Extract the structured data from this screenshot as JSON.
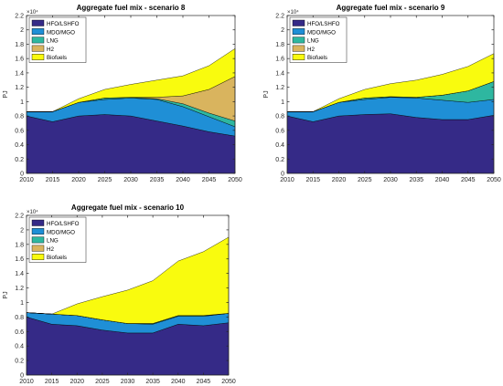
{
  "chart_data": [
    {
      "type": "area",
      "stacked": true,
      "title": "Aggregate fuel mix - scenario 8",
      "xlabel": "",
      "ylabel": "PJ",
      "y_multiplier": "10⁴",
      "xlim": [
        2010,
        2050
      ],
      "ylim": [
        0,
        2.2
      ],
      "x": [
        2010,
        2015,
        2020,
        2025,
        2030,
        2035,
        2040,
        2045,
        2050
      ],
      "x_ticks": [
        "2010",
        "2015",
        "2020",
        "2025",
        "2030",
        "2035",
        "2040",
        "2045",
        "2050"
      ],
      "y_ticks": [
        "0",
        "0.2",
        "0.4",
        "0.6",
        "0.8",
        "1",
        "1.2",
        "1.4",
        "1.6",
        "1.8",
        "2",
        "2.2"
      ],
      "legend_position": "top-left",
      "series": [
        {
          "name": "HFO/LSHFO",
          "color": "#352a87",
          "values": [
            0.8,
            0.72,
            0.8,
            0.82,
            0.8,
            0.73,
            0.66,
            0.58,
            0.52
          ]
        },
        {
          "name": "MDO/MGO",
          "color": "#1f8fd6",
          "values": [
            0.06,
            0.14,
            0.19,
            0.21,
            0.25,
            0.3,
            0.27,
            0.21,
            0.13
          ]
        },
        {
          "name": "LNG",
          "color": "#2eb7a0",
          "values": [
            0.0,
            0.0,
            0.0,
            0.02,
            0.01,
            0.01,
            0.04,
            0.05,
            0.08
          ]
        },
        {
          "name": "H2",
          "color": "#d9b45e",
          "values": [
            0.0,
            0.0,
            0.0,
            0.0,
            0.0,
            0.02,
            0.11,
            0.33,
            0.62
          ]
        },
        {
          "name": "Biofuels",
          "color": "#f9fb0e",
          "values": [
            0.0,
            0.0,
            0.05,
            0.12,
            0.18,
            0.24,
            0.28,
            0.33,
            0.39
          ]
        }
      ]
    },
    {
      "type": "area",
      "stacked": true,
      "title": "Aggregate fuel mix - scenario 9",
      "xlabel": "",
      "ylabel": "PJ",
      "y_multiplier": "10⁴",
      "xlim": [
        2010,
        2050
      ],
      "ylim": [
        0,
        2.2
      ],
      "x": [
        2010,
        2015,
        2020,
        2025,
        2030,
        2035,
        2040,
        2045,
        2050
      ],
      "x_ticks": [
        "2010",
        "2015",
        "2020",
        "2025",
        "2030",
        "2035",
        "2040",
        "2045",
        "2050"
      ],
      "y_ticks": [
        "0",
        "0.2",
        "0.4",
        "0.6",
        "0.8",
        "1",
        "1.2",
        "1.4",
        "1.6",
        "1.8",
        "2",
        "2.2"
      ],
      "legend_position": "top-left",
      "series": [
        {
          "name": "HFO/LSHFO",
          "color": "#352a87",
          "values": [
            0.8,
            0.72,
            0.8,
            0.82,
            0.83,
            0.78,
            0.75,
            0.75,
            0.81
          ]
        },
        {
          "name": "MDO/MGO",
          "color": "#1f8fd6",
          "values": [
            0.06,
            0.14,
            0.19,
            0.21,
            0.23,
            0.27,
            0.27,
            0.24,
            0.22
          ]
        },
        {
          "name": "LNG",
          "color": "#2eb7a0",
          "values": [
            0.0,
            0.0,
            0.0,
            0.02,
            0.01,
            0.01,
            0.07,
            0.16,
            0.25
          ]
        },
        {
          "name": "H2",
          "color": "#d9b45e",
          "values": [
            0.0,
            0.0,
            0.0,
            0.0,
            0.0,
            0.0,
            0.0,
            0.0,
            0.0
          ]
        },
        {
          "name": "Biofuels",
          "color": "#f9fb0e",
          "values": [
            0.0,
            0.0,
            0.05,
            0.12,
            0.18,
            0.24,
            0.29,
            0.34,
            0.39
          ]
        }
      ]
    },
    {
      "type": "area",
      "stacked": true,
      "title": "Aggregate fuel mix - scenario 10",
      "xlabel": "",
      "ylabel": "PJ",
      "y_multiplier": "10⁴",
      "xlim": [
        2010,
        2050
      ],
      "ylim": [
        0,
        2.2
      ],
      "x": [
        2010,
        2015,
        2020,
        2025,
        2030,
        2035,
        2040,
        2045,
        2050
      ],
      "x_ticks": [
        "2010",
        "2015",
        "2020",
        "2025",
        "2030",
        "2035",
        "2040",
        "2045",
        "2050"
      ],
      "y_ticks": [
        "0",
        "0.2",
        "0.4",
        "0.6",
        "0.8",
        "1",
        "1.2",
        "1.4",
        "1.6",
        "1.8",
        "2",
        "2.2"
      ],
      "legend_position": "top-left",
      "series": [
        {
          "name": "HFO/LSHFO",
          "color": "#352a87",
          "values": [
            0.8,
            0.7,
            0.68,
            0.62,
            0.58,
            0.58,
            0.7,
            0.68,
            0.72
          ]
        },
        {
          "name": "MDO/MGO",
          "color": "#1f8fd6",
          "values": [
            0.06,
            0.14,
            0.14,
            0.14,
            0.13,
            0.12,
            0.11,
            0.13,
            0.13
          ]
        },
        {
          "name": "LNG",
          "color": "#2eb7a0",
          "values": [
            0.0,
            0.0,
            0.0,
            0.0,
            0.0,
            0.01,
            0.01,
            0.01,
            0.0
          ]
        },
        {
          "name": "H2",
          "color": "#d9b45e",
          "values": [
            0.0,
            0.0,
            0.0,
            0.0,
            0.0,
            0.0,
            0.0,
            0.0,
            0.0
          ]
        },
        {
          "name": "Biofuels",
          "color": "#f9fb0e",
          "values": [
            0.0,
            0.0,
            0.16,
            0.32,
            0.46,
            0.59,
            0.75,
            0.88,
            1.05
          ]
        }
      ]
    }
  ]
}
